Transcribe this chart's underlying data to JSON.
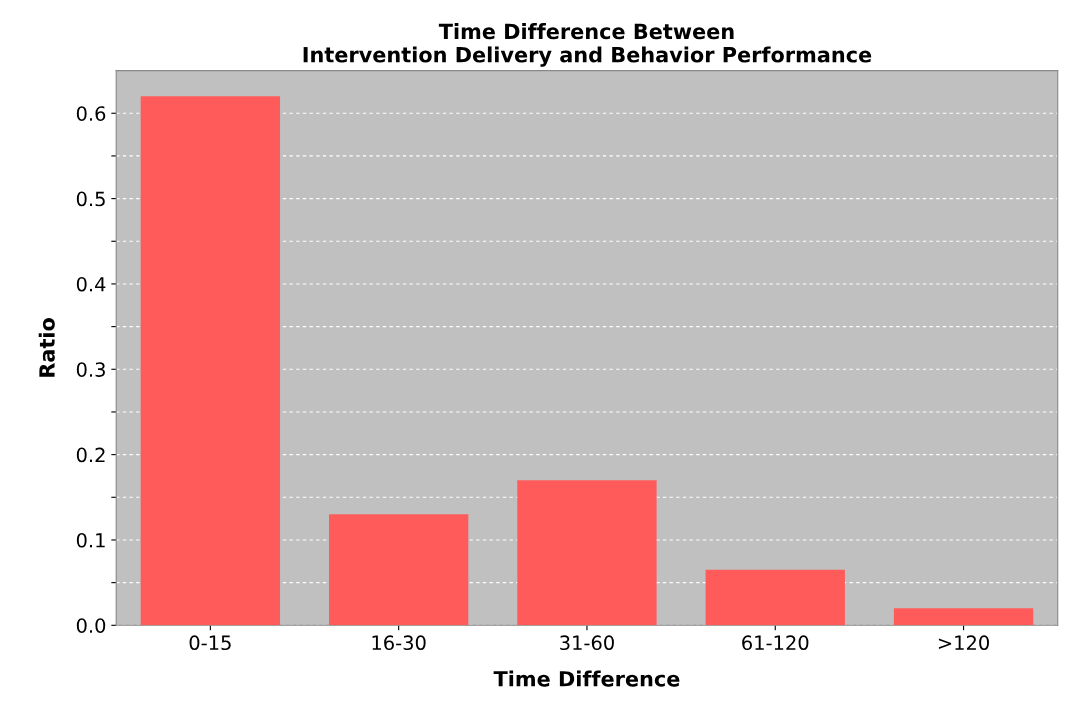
{
  "chart_data": {
    "type": "bar",
    "title": "Time Difference Between\nIntervention Delivery and Behavior Performance",
    "xlabel": "Time Difference",
    "ylabel": "Ratio",
    "categories": [
      "0-15",
      "16-30",
      "31-60",
      "61-120",
      ">120"
    ],
    "values": [
      0.62,
      0.13,
      0.17,
      0.065,
      0.02
    ],
    "color": "#ff5b5b",
    "ylim": [
      0,
      0.65
    ],
    "yticks": [
      {
        "value": 0,
        "label": "0.0"
      },
      {
        "value": 0.05,
        "label": null
      },
      0.1,
      {
        "value": 0.15,
        "label": null
      },
      0.2,
      {
        "value": 0.25,
        "label": null
      },
      0.3,
      {
        "value": 0.35,
        "label": null
      },
      0.4,
      {
        "value": 0.45,
        "label": null
      },
      0.5,
      {
        "value": 0.55,
        "label": null
      },
      0.6
    ],
    "grid": "y",
    "legend": false
  }
}
